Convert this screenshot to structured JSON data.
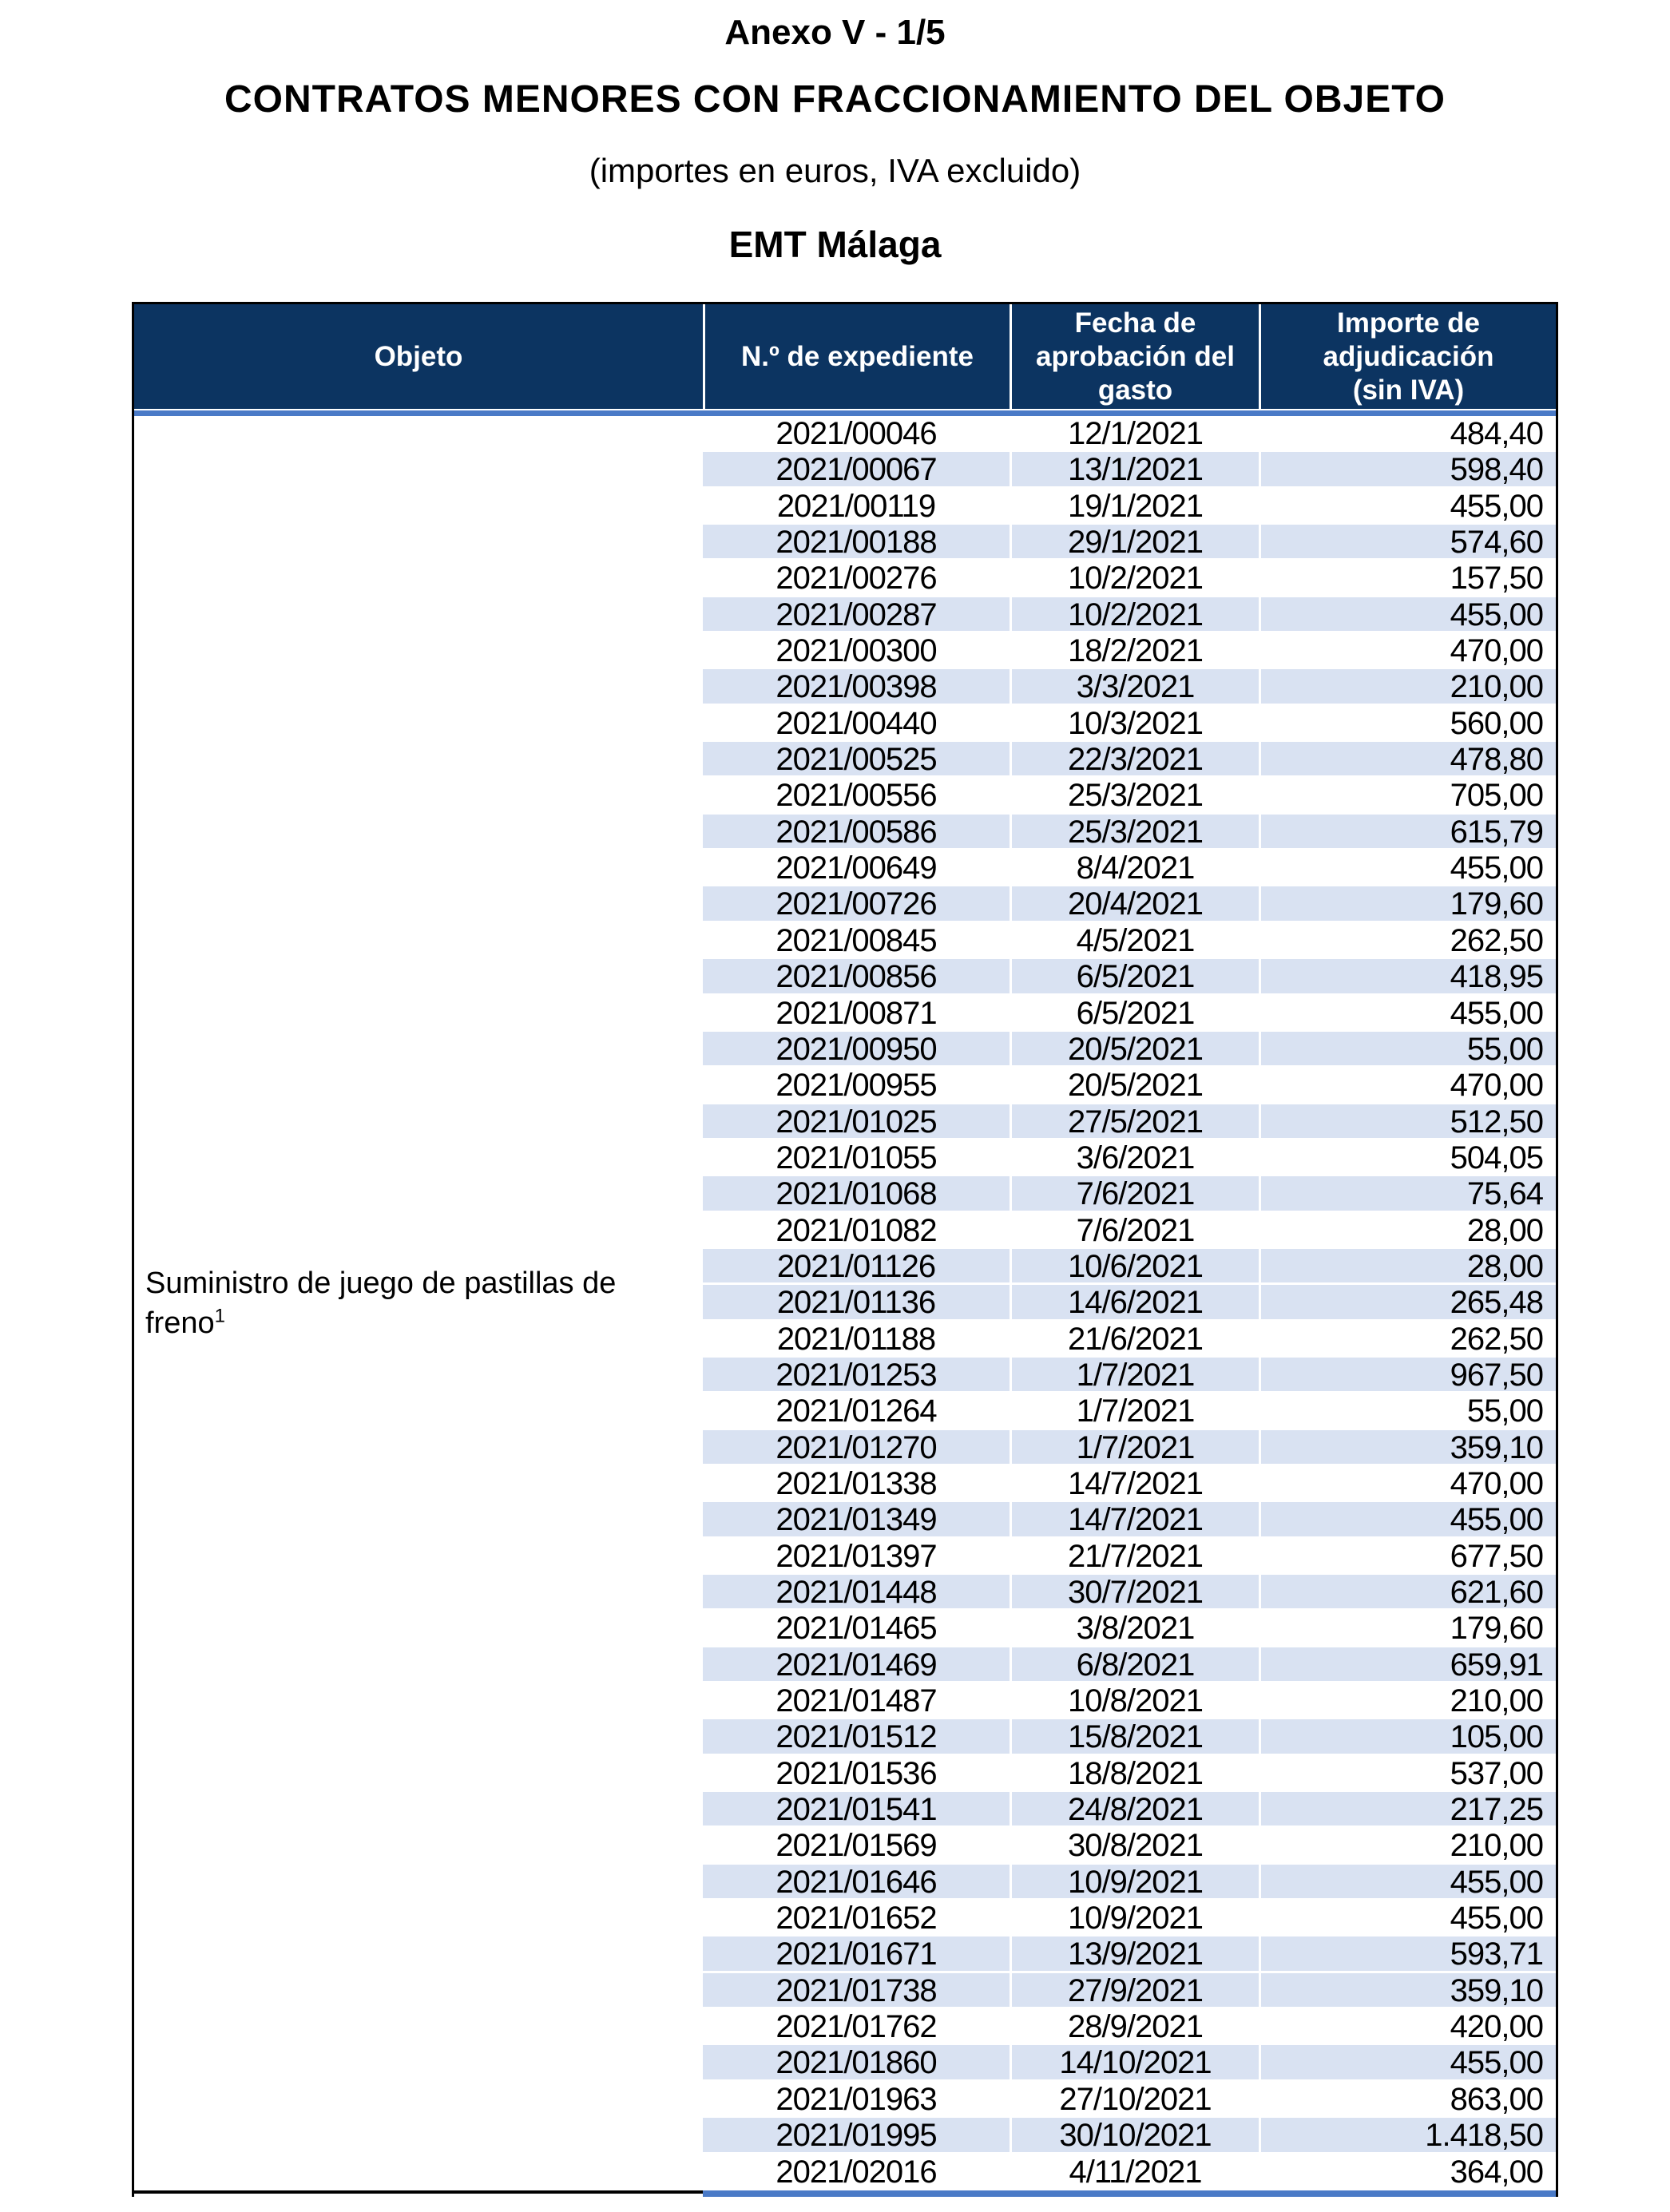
{
  "header": {
    "annex_title": "Anexo V - 1/5",
    "title": "CONTRATOS MENORES CON FRACCIONAMIENTO DEL OBJETO",
    "subtitle": "(importes en euros, IVA excluido)",
    "entity": "EMT Málaga"
  },
  "colors": {
    "header_bg": "#0c3461",
    "accent_line": "#4a7ac7",
    "row_band": "#d9e2f2",
    "border": "#000000"
  },
  "table": {
    "columns": [
      "Objeto",
      "N.º de expediente",
      "Fecha de\naprobación del\ngasto",
      "Importe de\nadjudicación\n(sin IVA)"
    ],
    "objeto": {
      "text": "Suministro de juego de pastillas de\nfreno",
      "footnote_marker": "1"
    },
    "rows": [
      {
        "expediente": "2021/00046",
        "fecha": "12/1/2021",
        "importe": "484,40",
        "shaded": false
      },
      {
        "expediente": "2021/00067",
        "fecha": "13/1/2021",
        "importe": "598,40",
        "shaded": true
      },
      {
        "expediente": "2021/00119",
        "fecha": "19/1/2021",
        "importe": "455,00",
        "shaded": false
      },
      {
        "expediente": "2021/00188",
        "fecha": "29/1/2021",
        "importe": "574,60",
        "shaded": true
      },
      {
        "expediente": "2021/00276",
        "fecha": "10/2/2021",
        "importe": "157,50",
        "shaded": false
      },
      {
        "expediente": "2021/00287",
        "fecha": "10/2/2021",
        "importe": "455,00",
        "shaded": true
      },
      {
        "expediente": "2021/00300",
        "fecha": "18/2/2021",
        "importe": "470,00",
        "shaded": false
      },
      {
        "expediente": "2021/00398",
        "fecha": "3/3/2021",
        "importe": "210,00",
        "shaded": true
      },
      {
        "expediente": "2021/00440",
        "fecha": "10/3/2021",
        "importe": "560,00",
        "shaded": false
      },
      {
        "expediente": "2021/00525",
        "fecha": "22/3/2021",
        "importe": "478,80",
        "shaded": true
      },
      {
        "expediente": "2021/00556",
        "fecha": "25/3/2021",
        "importe": "705,00",
        "shaded": false
      },
      {
        "expediente": "2021/00586",
        "fecha": "25/3/2021",
        "importe": "615,79",
        "shaded": true
      },
      {
        "expediente": "2021/00649",
        "fecha": "8/4/2021",
        "importe": "455,00",
        "shaded": false
      },
      {
        "expediente": "2021/00726",
        "fecha": "20/4/2021",
        "importe": "179,60",
        "shaded": true
      },
      {
        "expediente": "2021/00845",
        "fecha": "4/5/2021",
        "importe": "262,50",
        "shaded": false
      },
      {
        "expediente": "2021/00856",
        "fecha": "6/5/2021",
        "importe": "418,95",
        "shaded": true
      },
      {
        "expediente": "2021/00871",
        "fecha": "6/5/2021",
        "importe": "455,00",
        "shaded": false
      },
      {
        "expediente": "2021/00950",
        "fecha": "20/5/2021",
        "importe": "55,00",
        "shaded": true
      },
      {
        "expediente": "2021/00955",
        "fecha": "20/5/2021",
        "importe": "470,00",
        "shaded": false
      },
      {
        "expediente": "2021/01025",
        "fecha": "27/5/2021",
        "importe": "512,50",
        "shaded": true
      },
      {
        "expediente": "2021/01055",
        "fecha": "3/6/2021",
        "importe": "504,05",
        "shaded": false
      },
      {
        "expediente": "2021/01068",
        "fecha": "7/6/2021",
        "importe": "75,64",
        "shaded": true
      },
      {
        "expediente": "2021/01082",
        "fecha": "7/6/2021",
        "importe": "28,00",
        "shaded": false
      },
      {
        "expediente": "2021/01126",
        "fecha": "10/6/2021",
        "importe": "28,00",
        "shaded": true
      },
      {
        "expediente": "2021/01136",
        "fecha": "14/6/2021",
        "importe": "265,48",
        "shaded": true
      },
      {
        "expediente": "2021/01188",
        "fecha": "21/6/2021",
        "importe": "262,50",
        "shaded": false
      },
      {
        "expediente": "2021/01253",
        "fecha": "1/7/2021",
        "importe": "967,50",
        "shaded": true
      },
      {
        "expediente": "2021/01264",
        "fecha": "1/7/2021",
        "importe": "55,00",
        "shaded": false
      },
      {
        "expediente": "2021/01270",
        "fecha": "1/7/2021",
        "importe": "359,10",
        "shaded": true
      },
      {
        "expediente": "2021/01338",
        "fecha": "14/7/2021",
        "importe": "470,00",
        "shaded": false
      },
      {
        "expediente": "2021/01349",
        "fecha": "14/7/2021",
        "importe": "455,00",
        "shaded": true
      },
      {
        "expediente": "2021/01397",
        "fecha": "21/7/2021",
        "importe": "677,50",
        "shaded": false
      },
      {
        "expediente": "2021/01448",
        "fecha": "30/7/2021",
        "importe": "621,60",
        "shaded": true
      },
      {
        "expediente": "2021/01465",
        "fecha": "3/8/2021",
        "importe": "179,60",
        "shaded": false
      },
      {
        "expediente": "2021/01469",
        "fecha": "6/8/2021",
        "importe": "659,91",
        "shaded": true
      },
      {
        "expediente": "2021/01487",
        "fecha": "10/8/2021",
        "importe": "210,00",
        "shaded": false
      },
      {
        "expediente": "2021/01512",
        "fecha": "15/8/2021",
        "importe": "105,00",
        "shaded": true
      },
      {
        "expediente": "2021/01536",
        "fecha": "18/8/2021",
        "importe": "537,00",
        "shaded": false
      },
      {
        "expediente": "2021/01541",
        "fecha": "24/8/2021",
        "importe": "217,25",
        "shaded": true
      },
      {
        "expediente": "2021/01569",
        "fecha": "30/8/2021",
        "importe": "210,00",
        "shaded": false
      },
      {
        "expediente": "2021/01646",
        "fecha": "10/9/2021",
        "importe": "455,00",
        "shaded": true
      },
      {
        "expediente": "2021/01652",
        "fecha": "10/9/2021",
        "importe": "455,00",
        "shaded": false
      },
      {
        "expediente": "2021/01671",
        "fecha": "13/9/2021",
        "importe": "593,71",
        "shaded": true
      },
      {
        "expediente": "2021/01738",
        "fecha": "27/9/2021",
        "importe": "359,10",
        "shaded": true
      },
      {
        "expediente": "2021/01762",
        "fecha": "28/9/2021",
        "importe": "420,00",
        "shaded": false
      },
      {
        "expediente": "2021/01860",
        "fecha": "14/10/2021",
        "importe": "455,00",
        "shaded": true
      },
      {
        "expediente": "2021/01963",
        "fecha": "27/10/2021",
        "importe": "863,00",
        "shaded": false
      },
      {
        "expediente": "2021/01995",
        "fecha": "30/10/2021",
        "importe": "1.418,50",
        "shaded": true
      },
      {
        "expediente": "2021/02016",
        "fecha": "4/11/2021",
        "importe": "364,00",
        "shaded": false
      }
    ]
  }
}
